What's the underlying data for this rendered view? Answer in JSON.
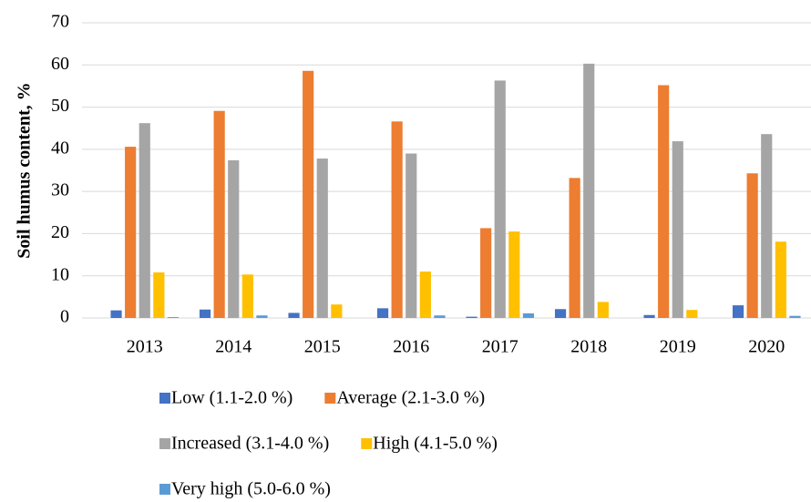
{
  "chart_data": {
    "type": "bar",
    "y_label": "Soil humus content, %",
    "categories": [
      "2013",
      "2014",
      "2015",
      "2016",
      "2017",
      "2018",
      "2019",
      "2020"
    ],
    "series": [
      {
        "name": "Low (1.1-2.0 %)",
        "color": "#4472c4",
        "values": [
          1.8,
          2.0,
          1.2,
          2.3,
          0.3,
          2.1,
          0.7,
          3.0
        ]
      },
      {
        "name": "Average (2.1-3.0 %)",
        "color": "#ed7d31",
        "values": [
          40.6,
          49.1,
          58.6,
          46.6,
          21.3,
          33.2,
          55.2,
          34.3
        ]
      },
      {
        "name": "Increased (3.1-4.0 %)",
        "color": "#a5a5a5",
        "values": [
          46.2,
          37.4,
          37.8,
          39.0,
          56.3,
          60.3,
          41.9,
          43.6
        ]
      },
      {
        "name": "High (4.1-5.0 %)",
        "color": "#ffc000",
        "values": [
          10.8,
          10.3,
          3.2,
          11.0,
          20.5,
          3.8,
          1.9,
          18.1
        ]
      },
      {
        "name": "Very high (5.0-6.0 %)",
        "color": "#5b9bd5",
        "values": [
          0.2,
          0.6,
          0,
          0.6,
          1.1,
          0,
          0,
          0.5
        ]
      }
    ],
    "ylim": [
      0,
      70
    ],
    "yticks": [
      0,
      10,
      20,
      30,
      40,
      50,
      60,
      70
    ],
    "grid": true
  }
}
